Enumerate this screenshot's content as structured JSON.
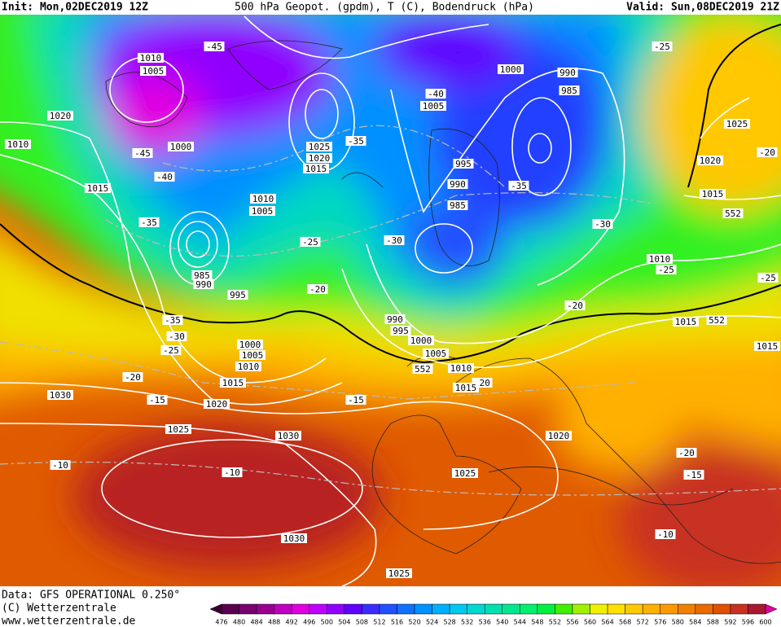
{
  "header": {
    "init": "Init: Mon,02DEC2019 12Z",
    "product": "500 hPa Geopot. (gpdm), T (C), Bodendruck (hPa)",
    "valid": "Valid: Sun,08DEC2019 21Z"
  },
  "footer": {
    "data": "Data: GFS OPERATIONAL 0.250°",
    "copyright": "(C) Wetterzentrale",
    "url": "www.wetterzentrale.de"
  },
  "colorbar": {
    "ticks": [
      476,
      480,
      484,
      488,
      492,
      496,
      500,
      504,
      508,
      512,
      516,
      520,
      524,
      528,
      532,
      536,
      540,
      544,
      548,
      552,
      556,
      560,
      564,
      568,
      572,
      576,
      580,
      584,
      588,
      592,
      596,
      600
    ],
    "colors": [
      "#3a0030",
      "#5a0050",
      "#7a0070",
      "#9a0090",
      "#c000c0",
      "#e000e0",
      "#c000ff",
      "#9000ff",
      "#6000ff",
      "#3a2cff",
      "#2050ff",
      "#1070ff",
      "#0090ff",
      "#00b0ff",
      "#00c8f0",
      "#00d8d0",
      "#00e0b0",
      "#00e890",
      "#00f070",
      "#00f040",
      "#40f000",
      "#a0f000",
      "#f0f000",
      "#ffe000",
      "#ffc800",
      "#ffb000",
      "#ff9800",
      "#f08000",
      "#e86a00",
      "#e05000",
      "#c83020",
      "#a81830",
      "#e000a0"
    ]
  },
  "map_labels": [
    "-45",
    "1010",
    "1005",
    "1020",
    "1010",
    "-45",
    "1000",
    "-40",
    "1015",
    "-35",
    "985",
    "990",
    "995",
    "-35",
    "-30",
    "-25",
    "1000",
    "1005",
    "1010",
    "-20",
    "1015",
    "1030",
    "-15",
    "1020",
    "1025",
    "1030",
    "-15",
    "-10",
    "-10",
    "1030",
    "1025",
    "1025",
    "1020",
    "1015",
    "-35",
    "1010",
    "1005",
    "-25",
    "-20",
    "-40",
    "1005",
    "1000",
    "990",
    "985",
    "995",
    "990",
    "985",
    "-35",
    "-30",
    "990",
    "995",
    "1000",
    "1005",
    "552",
    "1010",
    "-20",
    "1015",
    "1020",
    "1025",
    "-30",
    "1010",
    "-25",
    "-20",
    "1015",
    "552",
    "-25",
    "1025",
    "-20",
    "1020",
    "1015",
    "552",
    "-25",
    "1015",
    "-20",
    "-15",
    "-10"
  ]
}
